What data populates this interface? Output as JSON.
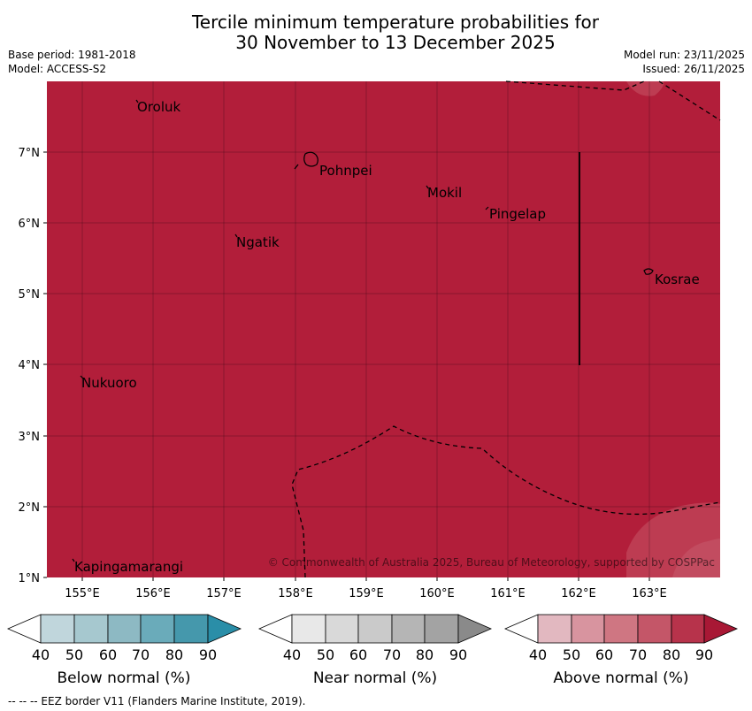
{
  "title_line1": "Tercile minimum temperature probabilities for",
  "title_line2": "30 November to 13 December 2025",
  "base_period": "Base period: 1981-2018",
  "model": "Model: ACCESS-S2",
  "model_run": "Model run: 23/11/2025",
  "issued": "Issued: 26/11/2025",
  "map": {
    "fill_color": "#b21e3a",
    "copyright": "© Commonwealth of Australia 2025, Bureau of Meteorology, supported by COSPPac",
    "lon_labels": [
      "155°E",
      "156°E",
      "157°E",
      "158°E",
      "159°E",
      "160°E",
      "161°E",
      "162°E",
      "163°E"
    ],
    "lat_labels": [
      "1°N",
      "2°N",
      "3°N",
      "4°N",
      "5°N",
      "6°N",
      "7°N"
    ],
    "places": [
      {
        "name": "Oroluk"
      },
      {
        "name": "Pohnpei"
      },
      {
        "name": "Mokil"
      },
      {
        "name": "Pingelap"
      },
      {
        "name": "Ngatik"
      },
      {
        "name": "Kosrae"
      },
      {
        "name": "Nukuoro"
      },
      {
        "name": "Kapingamarangi"
      }
    ]
  },
  "legends": [
    {
      "label": "Below normal (%)",
      "colors": [
        "#c0d6dc",
        "#a6c8cf",
        "#8db9c3",
        "#6aabba",
        "#4598ac",
        "#2a8ea8"
      ]
    },
    {
      "label": "Near normal (%)",
      "colors": [
        "#e8e8e8",
        "#d9d9d9",
        "#cacaca",
        "#b5b5b5",
        "#a3a3a3",
        "#8a8a8a"
      ]
    },
    {
      "label": "Above normal (%)",
      "colors": [
        "#e2b8c0",
        "#d8949f",
        "#cf7682",
        "#c45668",
        "#b7334b",
        "#a81835"
      ]
    }
  ],
  "legend_ticks": [
    "40",
    "50",
    "60",
    "70",
    "80",
    "90"
  ],
  "footnote": "--  --  -- EEZ border V11 (Flanders Marine Institute, 2019)."
}
